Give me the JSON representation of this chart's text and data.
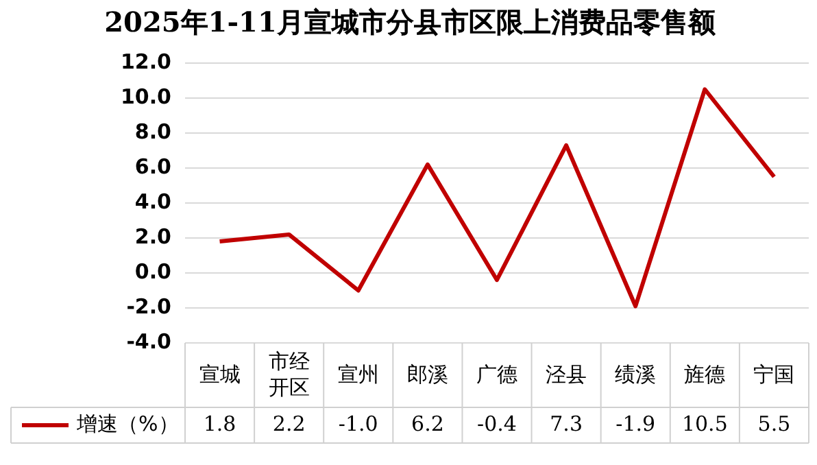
{
  "chart_data": {
    "type": "line",
    "title": "2025年1-11月宣城市分县市区限上消费品零售额",
    "categories": [
      "宣城",
      "市经开区",
      "宣州",
      "郎溪",
      "广德",
      "泾县",
      "绩溪",
      "旌德",
      "宁国"
    ],
    "series": [
      {
        "name": "增速（%）",
        "color": "#c00000",
        "values": [
          1.8,
          2.2,
          -1.0,
          6.2,
          -0.4,
          7.3,
          -1.9,
          10.5,
          5.5
        ],
        "value_labels": [
          "1.8",
          "2.2",
          "-1.0",
          "6.2",
          "-0.4",
          "7.3",
          "-1.9",
          "10.5",
          "5.5"
        ]
      }
    ],
    "ylim": [
      -4,
      12
    ],
    "yticks": [
      {
        "value": -4,
        "label": "-4.0"
      },
      {
        "value": -2,
        "label": "-2.0"
      },
      {
        "value": 0,
        "label": "0.0"
      },
      {
        "value": 2,
        "label": "2.0"
      },
      {
        "value": 4,
        "label": "4.0"
      },
      {
        "value": 6,
        "label": "6.0"
      },
      {
        "value": 8,
        "label": "8.0"
      },
      {
        "value": 10,
        "label": "10.0"
      },
      {
        "value": 12,
        "label": "12.0"
      }
    ],
    "grid": "y",
    "legend": "bottom",
    "marker": "none",
    "line_style": "solid"
  }
}
